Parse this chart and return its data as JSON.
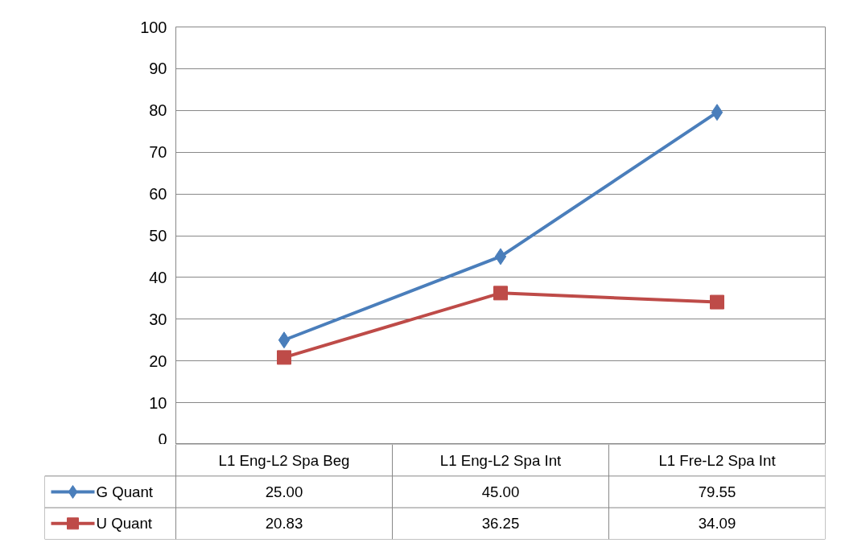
{
  "chart_data": {
    "type": "line",
    "categories": [
      "L1 Eng-L2 Spa Beg",
      "L1 Eng-L2 Spa Int",
      "L1 Fre-L2 Spa Int"
    ],
    "series": [
      {
        "name": "G Quant",
        "color": "#4a7ebb",
        "marker": "diamond",
        "values": [
          25.0,
          45.0,
          79.55
        ],
        "value_labels": [
          "25.00",
          "45.00",
          "79.55"
        ]
      },
      {
        "name": "U Quant",
        "color": "#be4b48",
        "marker": "square",
        "values": [
          20.83,
          36.25,
          34.09
        ],
        "value_labels": [
          "20.83",
          "36.25",
          "34.09"
        ]
      }
    ],
    "ylim": [
      0,
      100
    ],
    "yticks": [
      0,
      10,
      20,
      30,
      40,
      50,
      60,
      70,
      80,
      90,
      100
    ],
    "grid": "y",
    "legend": "bottom left",
    "line_style": "solid"
  }
}
